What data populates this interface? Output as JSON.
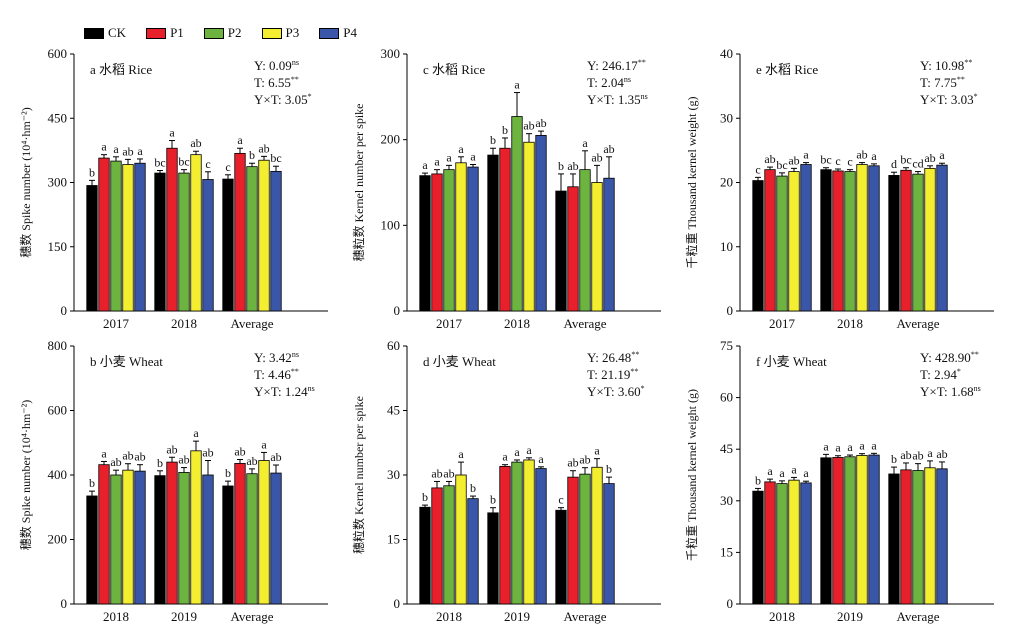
{
  "colors": {
    "CK": "#000000",
    "P1": "#e8202b",
    "P2": "#6db33f",
    "P3": "#f3ee2f",
    "P4": "#3a56a8"
  },
  "legend": [
    "CK",
    "P1",
    "P2",
    "P3",
    "P4"
  ],
  "chart_data": [
    {
      "type": "bar",
      "title": "a 水稻 Rice",
      "ylabel": "穗数 Spike number (10⁴·hm⁻²)",
      "ylim": [
        0,
        600
      ],
      "yticks": [
        0,
        150,
        300,
        450,
        600
      ],
      "categories": [
        "2017",
        "2018",
        "Average"
      ],
      "series": [
        {
          "name": "CK",
          "values": [
            293,
            322,
            308
          ],
          "errors": [
            12,
            6,
            10
          ],
          "letters": [
            "b",
            "bc",
            "c"
          ]
        },
        {
          "name": "P1",
          "values": [
            357,
            380,
            368
          ],
          "errors": [
            8,
            18,
            12
          ],
          "letters": [
            "a",
            "a",
            "a"
          ]
        },
        {
          "name": "P2",
          "values": [
            350,
            322,
            337
          ],
          "errors": [
            10,
            8,
            8
          ],
          "letters": [
            "a",
            "bc",
            "b"
          ]
        },
        {
          "name": "P3",
          "values": [
            342,
            365,
            352
          ],
          "errors": [
            12,
            8,
            9
          ],
          "letters": [
            "ab",
            "ab",
            "ab"
          ]
        },
        {
          "name": "P4",
          "values": [
            345,
            307,
            326
          ],
          "errors": [
            10,
            18,
            12
          ],
          "letters": [
            "a",
            "c",
            "bc"
          ]
        }
      ],
      "stats": [
        {
          "text": "Y: 0.09",
          "sup": "ns"
        },
        {
          "text": "T: 6.55",
          "sup": "**"
        },
        {
          "text": "Y×T: 3.05",
          "sup": "*"
        }
      ]
    },
    {
      "type": "bar",
      "title": "c 水稻 Rice",
      "ylabel": "穗粒数 Kernel number per spike",
      "ylim": [
        0,
        300
      ],
      "yticks": [
        0,
        100,
        200,
        300
      ],
      "categories": [
        "2017",
        "2018",
        "Average"
      ],
      "series": [
        {
          "name": "CK",
          "values": [
            158,
            182,
            140
          ],
          "errors": [
            3,
            8,
            20
          ],
          "letters": [
            "a",
            "b",
            "b"
          ]
        },
        {
          "name": "P1",
          "values": [
            160,
            190,
            145
          ],
          "errors": [
            5,
            12,
            15
          ],
          "letters": [
            "a",
            "b",
            "ab"
          ]
        },
        {
          "name": "P2",
          "values": [
            165,
            227,
            165
          ],
          "errors": [
            5,
            28,
            22
          ],
          "letters": [
            "a",
            "a",
            "a"
          ]
        },
        {
          "name": "P3",
          "values": [
            173,
            197,
            150
          ],
          "errors": [
            7,
            10,
            20
          ],
          "letters": [
            "a",
            "ab",
            "ab"
          ]
        },
        {
          "name": "P4",
          "values": [
            168,
            205,
            155
          ],
          "errors": [
            3,
            5,
            25
          ],
          "letters": [
            "a",
            "ab",
            "ab"
          ]
        }
      ],
      "stats": [
        {
          "text": "Y: 246.17",
          "sup": "**"
        },
        {
          "text": "T: 2.04",
          "sup": "ns"
        },
        {
          "text": "Y×T: 1.35",
          "sup": "ns"
        }
      ]
    },
    {
      "type": "bar",
      "title": "e 水稻 Rice",
      "ylabel": "千粒重 Thousand kernel weight (g)",
      "ylim": [
        0,
        40
      ],
      "yticks": [
        0,
        10,
        20,
        30,
        40
      ],
      "categories": [
        "2017",
        "2018",
        "Average"
      ],
      "series": [
        {
          "name": "CK",
          "values": [
            20.3,
            22.0,
            21.1
          ],
          "errors": [
            0.5,
            0.3,
            0.5
          ],
          "letters": [
            "c",
            "bc",
            "d"
          ]
        },
        {
          "name": "P1",
          "values": [
            22.0,
            21.8,
            21.9
          ],
          "errors": [
            0.4,
            0.3,
            0.4
          ],
          "letters": [
            "ab",
            "c",
            "bc"
          ]
        },
        {
          "name": "P2",
          "values": [
            21.0,
            21.7,
            21.3
          ],
          "errors": [
            0.5,
            0.3,
            0.4
          ],
          "letters": [
            "bc",
            "c",
            "cd"
          ]
        },
        {
          "name": "P3",
          "values": [
            21.7,
            22.8,
            22.2
          ],
          "errors": [
            0.5,
            0.3,
            0.4
          ],
          "letters": [
            "ab",
            "ab",
            "ab"
          ]
        },
        {
          "name": "P4",
          "values": [
            22.8,
            22.6,
            22.7
          ],
          "errors": [
            0.3,
            0.3,
            0.3
          ],
          "letters": [
            "a",
            "a",
            "a"
          ]
        }
      ],
      "stats": [
        {
          "text": "Y: 10.98",
          "sup": "**"
        },
        {
          "text": "T: 7.75",
          "sup": "**"
        },
        {
          "text": "Y×T: 3.03",
          "sup": "*"
        }
      ]
    },
    {
      "type": "bar",
      "title": "b 小麦 Wheat",
      "ylabel": "穗数 Spike number (10⁴·hm⁻²)",
      "ylim": [
        0,
        800
      ],
      "yticks": [
        0,
        200,
        400,
        600,
        800
      ],
      "categories": [
        "2018",
        "2019",
        "Average"
      ],
      "series": [
        {
          "name": "CK",
          "values": [
            335,
            398,
            366
          ],
          "errors": [
            15,
            15,
            15
          ],
          "letters": [
            "b",
            "b",
            "b"
          ]
        },
        {
          "name": "P1",
          "values": [
            432,
            440,
            436
          ],
          "errors": [
            10,
            15,
            12
          ],
          "letters": [
            "a",
            "ab",
            "ab"
          ]
        },
        {
          "name": "P2",
          "values": [
            400,
            408,
            404
          ],
          "errors": [
            15,
            15,
            15
          ],
          "letters": [
            "ab",
            "ab",
            "ab"
          ]
        },
        {
          "name": "P3",
          "values": [
            415,
            475,
            445
          ],
          "errors": [
            20,
            30,
            25
          ],
          "letters": [
            "ab",
            "a",
            "a"
          ]
        },
        {
          "name": "P4",
          "values": [
            412,
            400,
            406
          ],
          "errors": [
            20,
            45,
            25
          ],
          "letters": [
            "ab",
            "ab",
            "ab"
          ]
        }
      ],
      "stats": [
        {
          "text": "Y: 3.42",
          "sup": "ns"
        },
        {
          "text": "T: 4.46",
          "sup": "**"
        },
        {
          "text": "Y×T: 1.24",
          "sup": "ns"
        }
      ]
    },
    {
      "type": "bar",
      "title": "d 小麦 Wheat",
      "ylabel": "穗粒数 Kernel number per spike",
      "ylim": [
        0,
        60
      ],
      "yticks": [
        0,
        15,
        30,
        45,
        60
      ],
      "categories": [
        "2018",
        "2019",
        "Average"
      ],
      "series": [
        {
          "name": "CK",
          "values": [
            22.5,
            21.2,
            21.8
          ],
          "errors": [
            0.5,
            1.2,
            0.6
          ],
          "letters": [
            "b",
            "b",
            "c"
          ]
        },
        {
          "name": "P1",
          "values": [
            27.0,
            32.0,
            29.5
          ],
          "errors": [
            1.5,
            0.4,
            1.5
          ],
          "letters": [
            "ab",
            "a",
            "ab"
          ]
        },
        {
          "name": "P2",
          "values": [
            27.5,
            33.0,
            30.2
          ],
          "errors": [
            1.0,
            0.5,
            1.5
          ],
          "letters": [
            "ab",
            "a",
            "ab"
          ]
        },
        {
          "name": "P3",
          "values": [
            30.0,
            33.5,
            31.8
          ],
          "errors": [
            3.0,
            0.5,
            2.0
          ],
          "letters": [
            "a",
            "a",
            "a"
          ]
        },
        {
          "name": "P4",
          "values": [
            24.5,
            31.5,
            28.0
          ],
          "errors": [
            0.6,
            0.4,
            1.5
          ],
          "letters": [
            "b",
            "a",
            "b"
          ]
        }
      ],
      "stats": [
        {
          "text": "Y: 26.48",
          "sup": "**"
        },
        {
          "text": "T: 21.19",
          "sup": "**"
        },
        {
          "text": "Y×T: 3.60",
          "sup": "*"
        }
      ]
    },
    {
      "type": "bar",
      "title": "f 小麦 Wheat",
      "ylabel": "千粒重 Thousand kernel weight (g)",
      "ylim": [
        0,
        75
      ],
      "yticks": [
        0,
        15,
        30,
        45,
        60,
        75
      ],
      "categories": [
        "2018",
        "2019",
        "Average"
      ],
      "series": [
        {
          "name": "CK",
          "values": [
            32.8,
            42.5,
            37.8
          ],
          "errors": [
            0.8,
            1.0,
            2.0
          ],
          "letters": [
            "b",
            "a",
            "b"
          ]
        },
        {
          "name": "P1",
          "values": [
            35.5,
            42.6,
            39.0
          ],
          "errors": [
            0.8,
            0.5,
            2.0
          ],
          "letters": [
            "a",
            "a",
            "ab"
          ]
        },
        {
          "name": "P2",
          "values": [
            35.0,
            42.8,
            38.8
          ],
          "errors": [
            0.8,
            0.5,
            2.0
          ],
          "letters": [
            "a",
            "a",
            "ab"
          ]
        },
        {
          "name": "P3",
          "values": [
            36.0,
            43.2,
            39.6
          ],
          "errors": [
            0.8,
            0.5,
            2.0
          ],
          "letters": [
            "a",
            "a",
            "a"
          ]
        },
        {
          "name": "P4",
          "values": [
            35.2,
            43.3,
            39.3
          ],
          "errors": [
            0.5,
            0.5,
            2.0
          ],
          "letters": [
            "a",
            "a",
            "ab"
          ]
        }
      ],
      "stats": [
        {
          "text": "Y: 428.90",
          "sup": "**"
        },
        {
          "text": "T: 2.94",
          "sup": "*"
        },
        {
          "text": "Y×T: 1.68",
          "sup": "ns"
        }
      ]
    }
  ]
}
